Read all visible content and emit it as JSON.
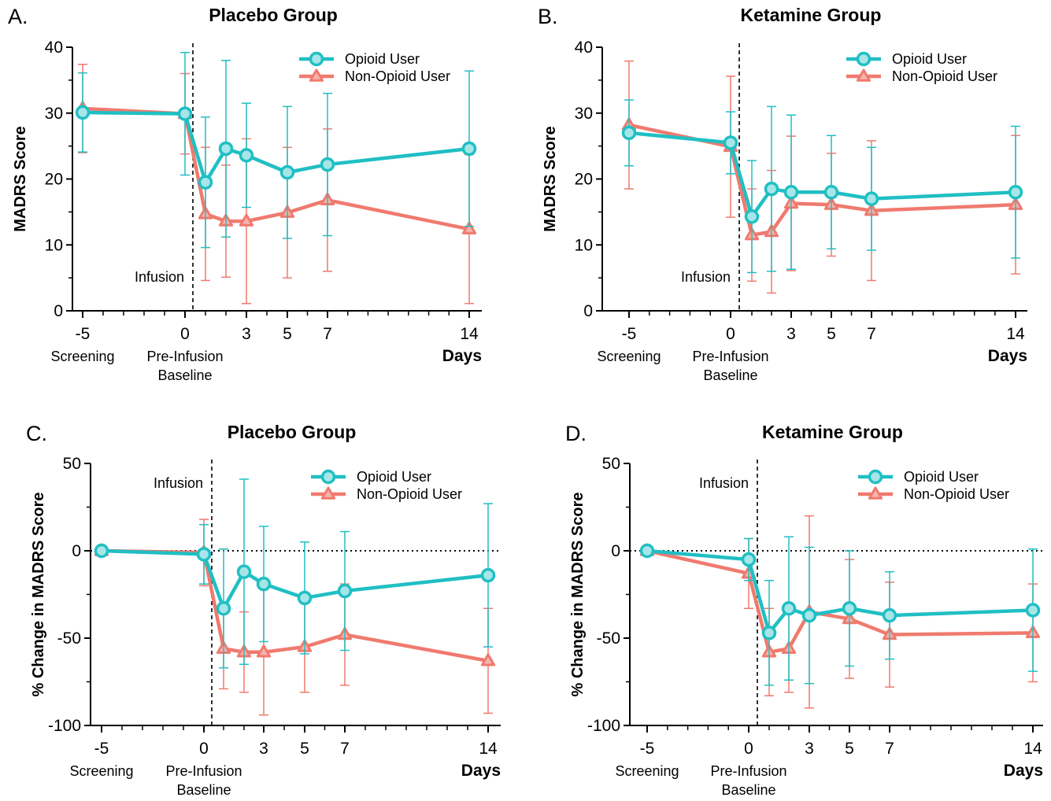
{
  "figure": {
    "x_unit_label": "Days",
    "x_annotations": {
      "screening": "Screening",
      "pre_infusion_line1": "Pre-Infusion",
      "pre_infusion_line2": "Baseline"
    },
    "infusion_label": "Infusion",
    "legend": [
      "Opioid User",
      "Non-Opioid User"
    ]
  },
  "colors": {
    "opioid": "#20BFC3",
    "non_opioid": "#F07A6E"
  },
  "chart_data": [
    {
      "type": "line",
      "panel": "A.",
      "title": "Placebo Group",
      "ylabel": "MADRS Score",
      "xlabel": "Days",
      "ylim": [
        0,
        40
      ],
      "yticks": [
        0,
        10,
        20,
        30,
        40
      ],
      "xticks": [
        -5,
        0,
        3,
        5,
        7,
        14
      ],
      "x": [
        -5,
        0,
        1,
        2,
        3,
        5,
        7,
        14
      ],
      "series": [
        {
          "name": "Opioid User",
          "marker": "circle",
          "y": [
            30.1,
            29.9,
            19.5,
            24.6,
            23.6,
            21.0,
            22.2,
            24.6
          ],
          "err": [
            6.0,
            9.3,
            9.9,
            13.4,
            7.9,
            10.0,
            10.8,
            11.8
          ]
        },
        {
          "name": "Non-Opioid User",
          "marker": "triangle",
          "y": [
            30.7,
            29.9,
            14.7,
            13.6,
            13.6,
            14.9,
            16.8,
            12.4
          ],
          "err": [
            6.7,
            6.1,
            10.1,
            8.5,
            12.5,
            9.9,
            10.8,
            11.3
          ]
        }
      ]
    },
    {
      "type": "line",
      "panel": "B.",
      "title": "Ketamine Group",
      "ylabel": "MADRS Score",
      "xlabel": "Days",
      "ylim": [
        0,
        40
      ],
      "yticks": [
        0,
        10,
        20,
        30,
        40
      ],
      "xticks": [
        -5,
        0,
        3,
        5,
        7,
        14
      ],
      "x": [
        -5,
        0,
        1,
        2,
        3,
        5,
        7,
        14
      ],
      "series": [
        {
          "name": "Opioid User",
          "marker": "circle",
          "y": [
            27.0,
            25.5,
            14.3,
            18.5,
            18.0,
            18.0,
            17.0,
            18.0
          ],
          "err": [
            5.0,
            4.7,
            8.5,
            12.5,
            11.7,
            8.6,
            7.8,
            10.0
          ]
        },
        {
          "name": "Non-Opioid User",
          "marker": "triangle",
          "y": [
            28.2,
            24.9,
            11.5,
            12.0,
            16.3,
            16.1,
            15.2,
            16.1
          ],
          "err": [
            9.7,
            10.7,
            7.0,
            9.3,
            10.2,
            7.8,
            10.6,
            10.5
          ]
        }
      ]
    },
    {
      "type": "line",
      "panel": "C.",
      "title": "Placebo Group",
      "ylabel": "% Change in MADRS Score",
      "xlabel": "Days",
      "ylim": [
        -100,
        50
      ],
      "yticks": [
        -100,
        -50,
        0,
        50
      ],
      "xticks": [
        -5,
        0,
        3,
        5,
        7,
        14
      ],
      "x": [
        -5,
        0,
        1,
        2,
        3,
        5,
        7,
        14
      ],
      "series": [
        {
          "name": "Opioid User",
          "marker": "circle",
          "y": [
            0,
            -2,
            -33,
            -12,
            -19,
            -27,
            -23,
            -14
          ],
          "err": [
            0,
            17,
            34,
            53,
            33,
            32,
            34,
            41
          ]
        },
        {
          "name": "Non-Opioid User",
          "marker": "triangle",
          "y": [
            0,
            -1,
            -56,
            -58,
            -58,
            -55,
            -48,
            -63
          ],
          "err": [
            0,
            19,
            23,
            23,
            36,
            26,
            29,
            30
          ]
        }
      ]
    },
    {
      "type": "line",
      "panel": "D.",
      "title": "Ketamine Group",
      "ylabel": "% Change in MADRS Score",
      "xlabel": "Days",
      "ylim": [
        -100,
        50
      ],
      "yticks": [
        -100,
        -50,
        0,
        50
      ],
      "xticks": [
        -5,
        0,
        3,
        5,
        7,
        14
      ],
      "x": [
        -5,
        0,
        1,
        2,
        3,
        5,
        7,
        14
      ],
      "series": [
        {
          "name": "Opioid User",
          "marker": "circle",
          "y": [
            0,
            -5,
            -47,
            -33,
            -37,
            -33,
            -37,
            -34
          ],
          "err": [
            0,
            12,
            30,
            41,
            39,
            33,
            25,
            35
          ]
        },
        {
          "name": "Non-Opioid User",
          "marker": "triangle",
          "y": [
            0,
            -13,
            -58,
            -56,
            -35,
            -39,
            -48,
            -47
          ],
          "err": [
            0,
            20,
            25,
            25,
            55,
            34,
            30,
            28
          ]
        }
      ]
    }
  ]
}
